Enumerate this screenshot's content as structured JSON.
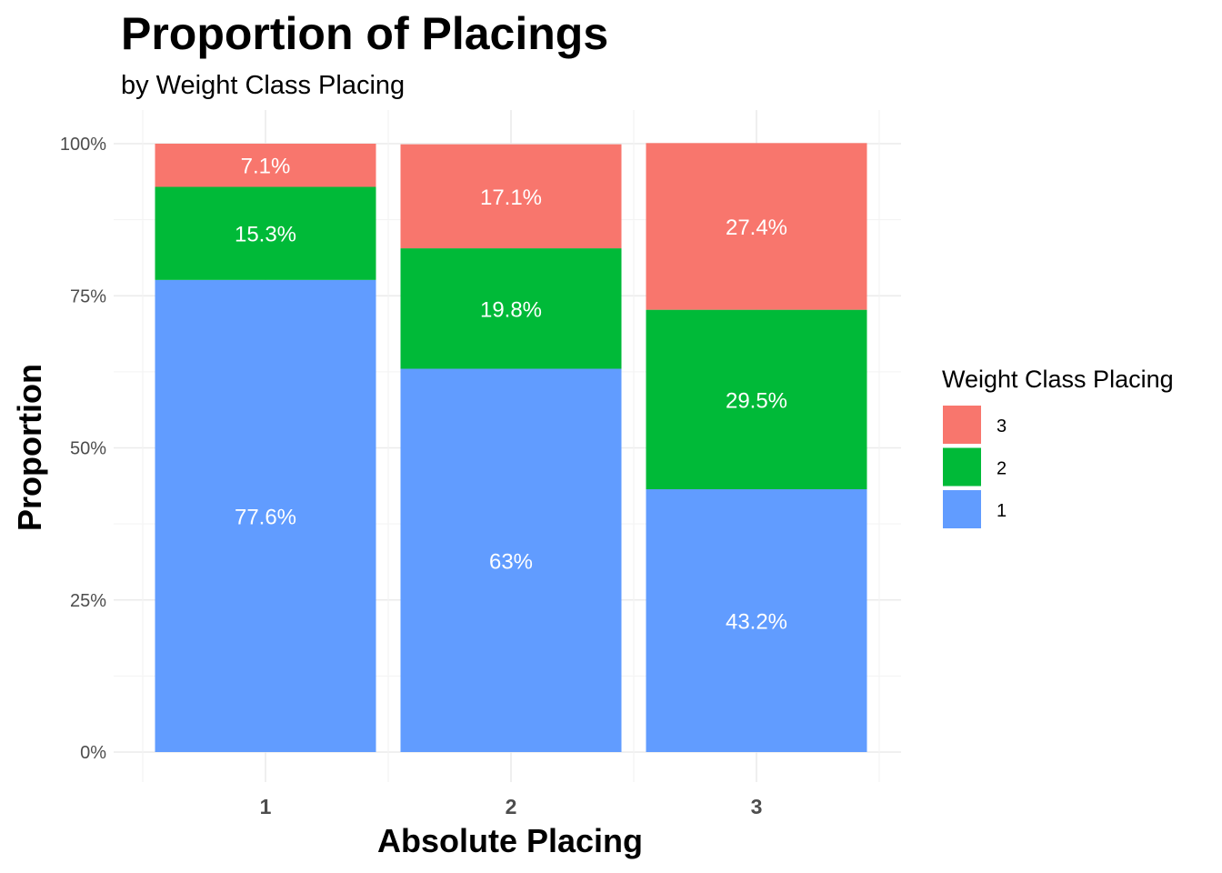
{
  "chart_data": {
    "type": "bar",
    "stacked": true,
    "position": "fill",
    "title": "Proportion of Placings",
    "subtitle": "by Weight Class Placing",
    "xlabel": "Absolute Placing",
    "ylabel": "Proportion",
    "categories": [
      "1",
      "2",
      "3"
    ],
    "ylim": [
      0,
      1
    ],
    "yticks": [
      0,
      0.25,
      0.5,
      0.75,
      1
    ],
    "ytick_labels": [
      "0%",
      "25%",
      "50%",
      "75%",
      "100%"
    ],
    "grid": true,
    "legend": {
      "title": "Weight Class Placing",
      "position": "right"
    },
    "series": [
      {
        "name": "1",
        "color": "#619CFF",
        "values": [
          0.776,
          0.63,
          0.432
        ],
        "labels": [
          "77.6%",
          "63%",
          "43.2%"
        ]
      },
      {
        "name": "2",
        "color": "#00BA38",
        "values": [
          0.153,
          0.198,
          0.295
        ],
        "labels": [
          "15.3%",
          "19.8%",
          "29.5%"
        ]
      },
      {
        "name": "3",
        "color": "#F8766D",
        "values": [
          0.071,
          0.171,
          0.274
        ],
        "labels": [
          "7.1%",
          "17.1%",
          "27.4%"
        ]
      }
    ]
  }
}
